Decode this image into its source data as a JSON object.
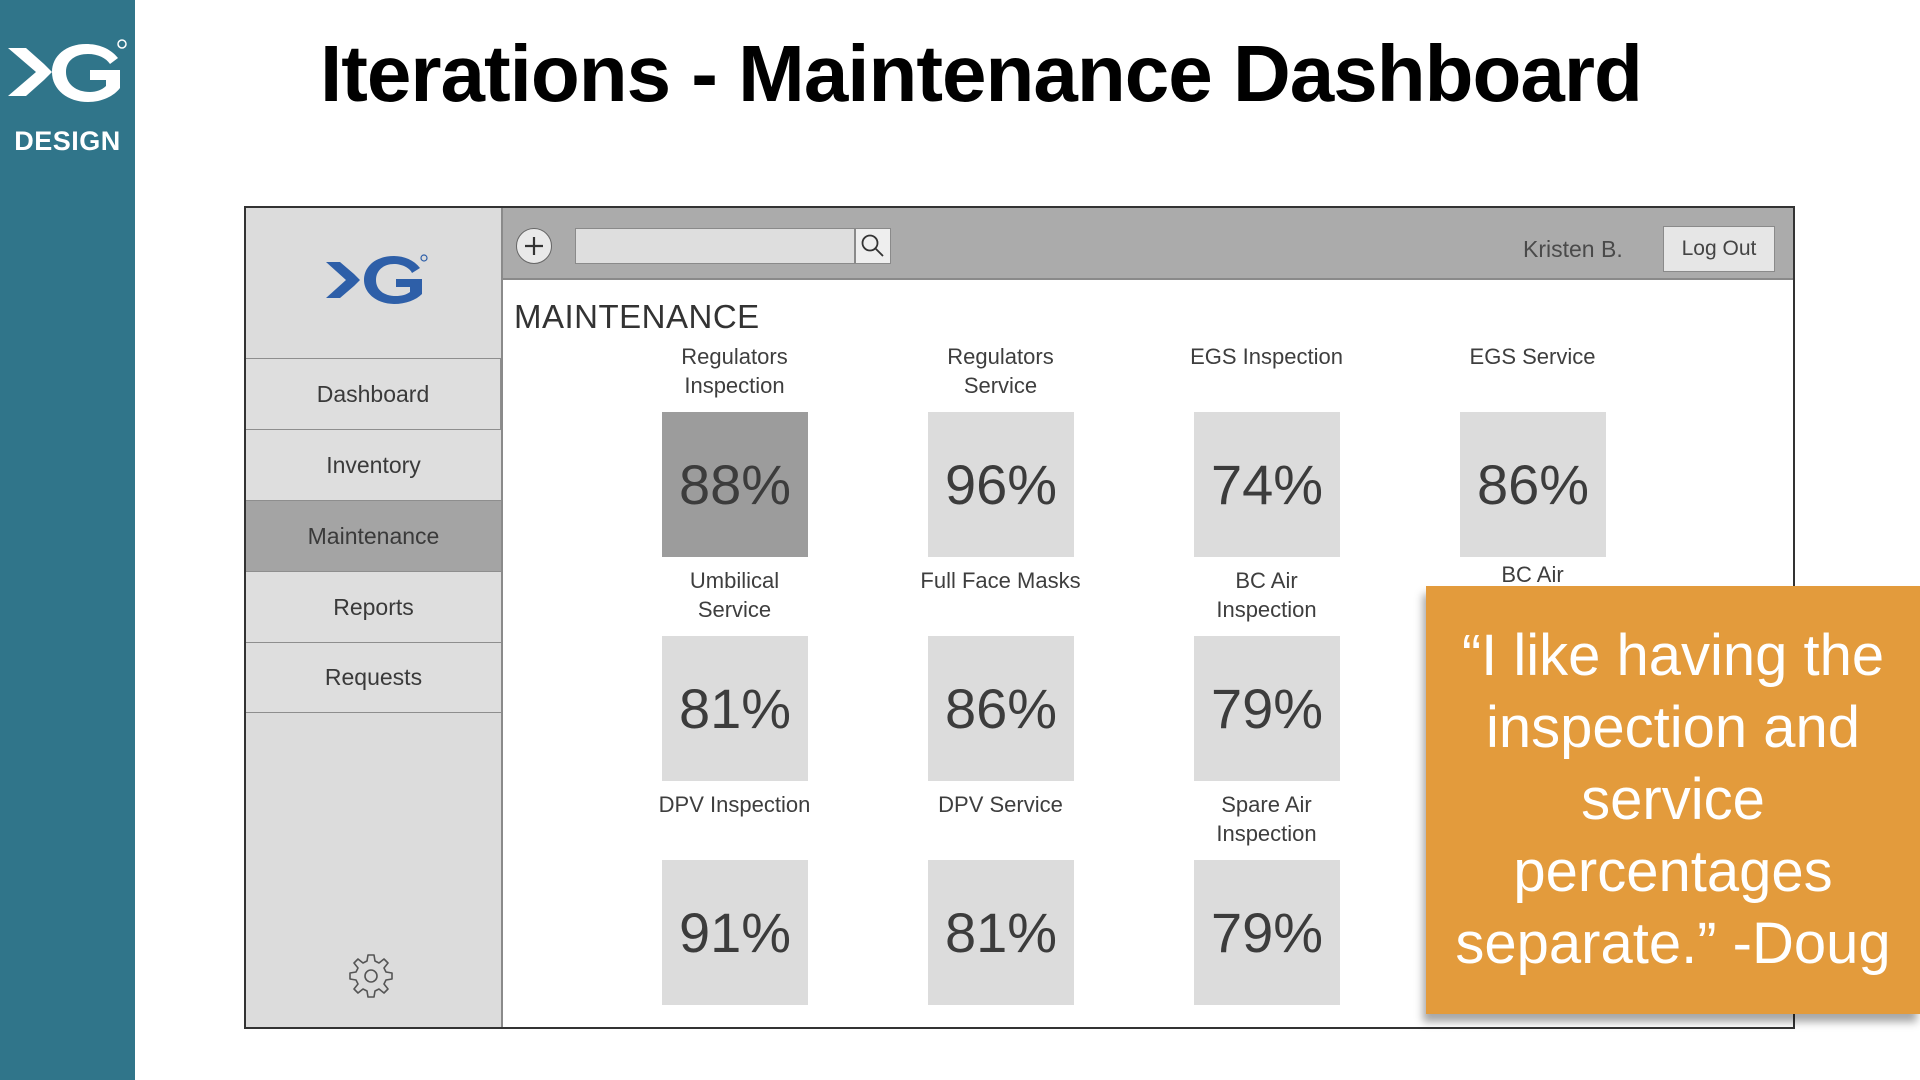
{
  "slide": {
    "brand_text": "DESIGN",
    "title": "Iterations - Maintenance Dashboard",
    "colors": {
      "brand_band": "#30758a",
      "quote_background": "#e39b3c",
      "logo_blue": "#2e5fa8"
    }
  },
  "mockup": {
    "sidebar": {
      "logo_icon": "xg-fish-logo",
      "items": [
        {
          "label": "Dashboard"
        },
        {
          "label": "Inventory"
        },
        {
          "label": "Maintenance",
          "active": true
        },
        {
          "label": "Reports"
        },
        {
          "label": "Requests"
        }
      ],
      "settings_icon": "gear-icon"
    },
    "topbar": {
      "add_icon": "plus-icon",
      "search_placeholder": "",
      "search_icon": "search-icon",
      "user_name": "Kristen B.",
      "logout_label": "Log Out"
    },
    "section_title": "MAINTENANCE",
    "tiles": [
      {
        "label": "Regulators Inspection",
        "value": "88%",
        "highlighted": true
      },
      {
        "label": "Regulators Service",
        "value": "96%"
      },
      {
        "label": "EGS Inspection",
        "value": "74%"
      },
      {
        "label": "EGS Service",
        "value": "86%"
      },
      {
        "label": "Umbilical Service",
        "value": "81%"
      },
      {
        "label": "Full Face Masks",
        "value": "86%"
      },
      {
        "label": "BC Air Inspection",
        "value": "79%"
      },
      {
        "label": "BC Air",
        "value": ""
      },
      {
        "label": "DPV Inspection",
        "value": "91%"
      },
      {
        "label": "DPV Service",
        "value": "81%"
      },
      {
        "label": "Spare Air Inspection",
        "value": "79%"
      }
    ]
  },
  "quote": {
    "text": "“I like having the inspection and service percentages separate.” -Doug"
  }
}
